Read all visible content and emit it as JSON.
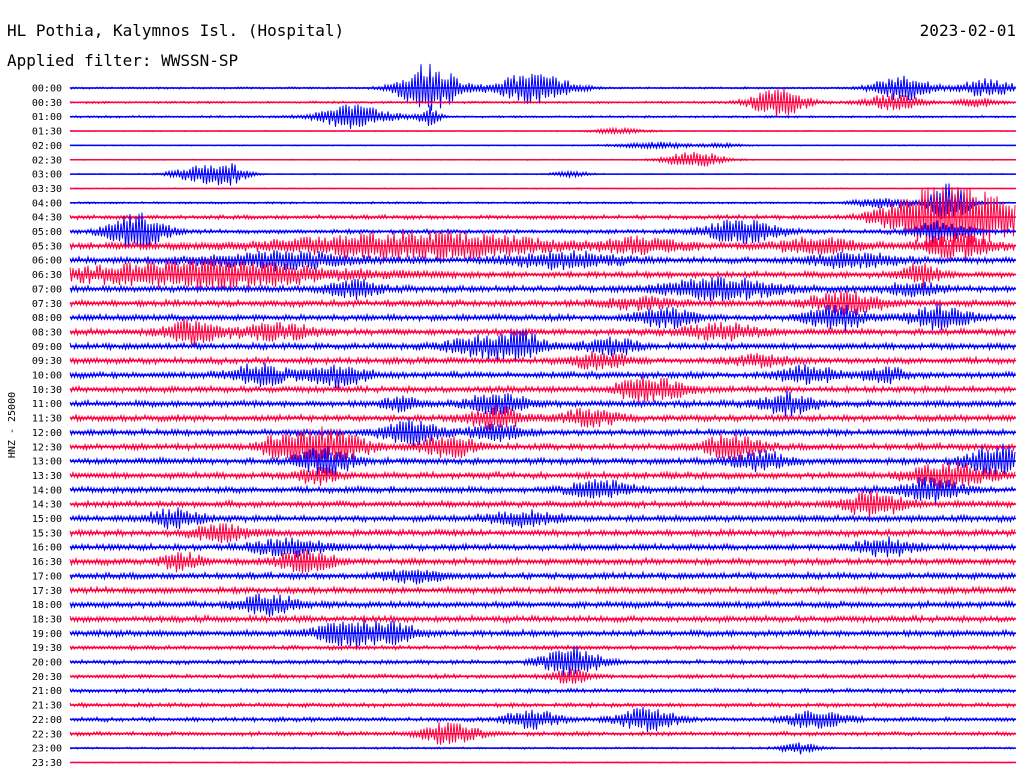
{
  "header": {
    "station": "HL Pothia, Kalymnos Isl. (Hospital)",
    "date": "2023-02-01",
    "filter": "Applied filter: WWSSN-SP"
  },
  "chart_data": {
    "type": "line",
    "title": "HL Pothia, Kalymnos Isl. (Hospital)",
    "subtitle": "Applied filter: WWSSN-SP",
    "date": "2023-02-01",
    "ylabel": "HNZ - 25000",
    "xlabel": "",
    "grid": false,
    "colors": {
      "even": "#0000ff",
      "odd": "#ff0040",
      "text": "#000000"
    },
    "rows": [
      {
        "label": "00:00",
        "level": "low",
        "events": [
          {
            "at": 0.38,
            "amp": 1.0,
            "width": 0.03
          },
          {
            "at": 0.49,
            "amp": 0.6,
            "width": 0.04
          },
          {
            "at": 0.88,
            "amp": 0.5,
            "width": 0.03
          },
          {
            "at": 0.97,
            "amp": 0.35,
            "width": 0.03
          }
        ]
      },
      {
        "label": "00:30",
        "level": "low",
        "events": [
          {
            "at": 0.75,
            "amp": 0.55,
            "width": 0.03
          },
          {
            "at": 0.87,
            "amp": 0.3,
            "width": 0.03
          },
          {
            "at": 0.96,
            "amp": 0.2,
            "width": 0.02
          }
        ]
      },
      {
        "label": "01:00",
        "level": "low",
        "events": [
          {
            "at": 0.3,
            "amp": 0.45,
            "width": 0.04
          },
          {
            "at": 0.38,
            "amp": 0.4,
            "width": 0.01
          }
        ]
      },
      {
        "label": "01:30",
        "level": "quiet",
        "events": [
          {
            "at": 0.58,
            "amp": 0.1,
            "width": 0.03
          }
        ]
      },
      {
        "label": "02:00",
        "level": "quiet",
        "events": [
          {
            "at": 0.62,
            "amp": 0.12,
            "width": 0.04
          },
          {
            "at": 0.69,
            "amp": 0.08,
            "width": 0.02
          }
        ]
      },
      {
        "label": "02:30",
        "level": "quiet",
        "events": [
          {
            "at": 0.66,
            "amp": 0.35,
            "width": 0.03
          }
        ]
      },
      {
        "label": "03:00",
        "level": "quiet",
        "events": [
          {
            "at": 0.14,
            "amp": 0.35,
            "width": 0.03
          },
          {
            "at": 0.17,
            "amp": 0.3,
            "width": 0.02
          },
          {
            "at": 0.53,
            "amp": 0.1,
            "width": 0.02
          }
        ]
      },
      {
        "label": "03:30",
        "level": "quiet",
        "events": []
      },
      {
        "label": "04:00",
        "level": "low",
        "events": [
          {
            "at": 0.93,
            "amp": 0.8,
            "width": 0.02
          },
          {
            "at": 0.86,
            "amp": 0.2,
            "width": 0.03
          }
        ]
      },
      {
        "label": "04:30",
        "level": "mid",
        "events": [
          {
            "at": 0.92,
            "amp": 1.2,
            "width": 0.04
          },
          {
            "at": 0.98,
            "amp": 0.8,
            "width": 0.04
          },
          {
            "at": 0.87,
            "amp": 0.3,
            "width": 0.03
          }
        ]
      },
      {
        "label": "05:00",
        "level": "mid",
        "events": [
          {
            "at": 0.07,
            "amp": 0.7,
            "width": 0.03
          },
          {
            "at": 0.71,
            "amp": 0.45,
            "width": 0.04
          },
          {
            "at": 0.92,
            "amp": 0.35,
            "width": 0.03
          }
        ]
      },
      {
        "label": "05:30",
        "level": "high",
        "events": [
          {
            "at": 0.37,
            "amp": 0.5,
            "width": 0.14
          },
          {
            "at": 0.61,
            "amp": 0.3,
            "width": 0.04
          },
          {
            "at": 0.79,
            "amp": 0.3,
            "width": 0.04
          },
          {
            "at": 0.94,
            "amp": 0.45,
            "width": 0.04
          }
        ]
      },
      {
        "label": "06:00",
        "level": "high",
        "events": [
          {
            "at": 0.22,
            "amp": 0.3,
            "width": 0.08
          },
          {
            "at": 0.52,
            "amp": 0.3,
            "width": 0.06
          },
          {
            "at": 0.83,
            "amp": 0.25,
            "width": 0.05
          }
        ]
      },
      {
        "label": "06:30",
        "level": "high",
        "events": [
          {
            "at": 0.14,
            "amp": 0.5,
            "width": 0.14
          },
          {
            "at": 0.9,
            "amp": 0.4,
            "width": 0.02
          }
        ]
      },
      {
        "label": "07:00",
        "level": "high",
        "events": [
          {
            "at": 0.3,
            "amp": 0.3,
            "width": 0.03
          },
          {
            "at": 0.69,
            "amp": 0.4,
            "width": 0.06
          },
          {
            "at": 0.89,
            "amp": 0.25,
            "width": 0.03
          }
        ]
      },
      {
        "label": "07:30",
        "level": "high",
        "events": [
          {
            "at": 0.82,
            "amp": 0.4,
            "width": 0.04
          },
          {
            "at": 0.6,
            "amp": 0.2,
            "width": 0.04
          }
        ]
      },
      {
        "label": "08:00",
        "level": "high",
        "events": [
          {
            "at": 0.63,
            "amp": 0.35,
            "width": 0.03
          },
          {
            "at": 0.81,
            "amp": 0.45,
            "width": 0.03
          },
          {
            "at": 0.92,
            "amp": 0.45,
            "width": 0.03
          }
        ]
      },
      {
        "label": "08:30",
        "level": "high",
        "events": [
          {
            "at": 0.13,
            "amp": 0.45,
            "width": 0.03
          },
          {
            "at": 0.22,
            "amp": 0.3,
            "width": 0.04
          },
          {
            "at": 0.69,
            "amp": 0.3,
            "width": 0.04
          }
        ]
      },
      {
        "label": "09:00",
        "level": "high",
        "events": [
          {
            "at": 0.44,
            "amp": 0.4,
            "width": 0.04
          },
          {
            "at": 0.48,
            "amp": 0.45,
            "width": 0.02
          },
          {
            "at": 0.57,
            "amp": 0.3,
            "width": 0.03
          }
        ]
      },
      {
        "label": "09:30",
        "level": "high",
        "events": [
          {
            "at": 0.56,
            "amp": 0.3,
            "width": 0.03
          },
          {
            "at": 0.73,
            "amp": 0.2,
            "width": 0.03
          }
        ]
      },
      {
        "label": "10:00",
        "level": "high",
        "events": [
          {
            "at": 0.2,
            "amp": 0.4,
            "width": 0.03
          },
          {
            "at": 0.28,
            "amp": 0.45,
            "width": 0.03
          },
          {
            "at": 0.78,
            "amp": 0.35,
            "width": 0.03
          },
          {
            "at": 0.86,
            "amp": 0.3,
            "width": 0.02
          }
        ]
      },
      {
        "label": "10:30",
        "level": "high",
        "events": [
          {
            "at": 0.62,
            "amp": 0.4,
            "width": 0.03
          },
          {
            "at": 0.59,
            "amp": 0.2,
            "width": 0.02
          }
        ]
      },
      {
        "label": "11:00",
        "level": "high",
        "events": [
          {
            "at": 0.45,
            "amp": 0.4,
            "width": 0.03
          },
          {
            "at": 0.76,
            "amp": 0.4,
            "width": 0.03
          },
          {
            "at": 0.35,
            "amp": 0.25,
            "width": 0.02
          }
        ]
      },
      {
        "label": "11:30",
        "level": "high",
        "events": [
          {
            "at": 0.45,
            "amp": 0.4,
            "width": 0.03
          },
          {
            "at": 0.55,
            "amp": 0.3,
            "width": 0.03
          }
        ]
      },
      {
        "label": "12:00",
        "level": "high",
        "events": [
          {
            "at": 0.36,
            "amp": 0.45,
            "width": 0.03
          },
          {
            "at": 0.45,
            "amp": 0.3,
            "width": 0.03
          }
        ]
      },
      {
        "label": "12:30",
        "level": "high",
        "events": [
          {
            "at": 0.22,
            "amp": 0.35,
            "width": 0.02
          },
          {
            "at": 0.27,
            "amp": 0.7,
            "width": 0.04
          },
          {
            "at": 0.4,
            "amp": 0.4,
            "width": 0.03
          },
          {
            "at": 0.7,
            "amp": 0.5,
            "width": 0.03
          }
        ]
      },
      {
        "label": "13:00",
        "level": "high",
        "events": [
          {
            "at": 0.27,
            "amp": 0.5,
            "width": 0.03
          },
          {
            "at": 0.73,
            "amp": 0.35,
            "width": 0.03
          },
          {
            "at": 0.98,
            "amp": 0.6,
            "width": 0.03
          }
        ]
      },
      {
        "label": "13:30",
        "level": "high",
        "events": [
          {
            "at": 0.26,
            "amp": 0.3,
            "width": 0.02
          },
          {
            "at": 0.93,
            "amp": 0.5,
            "width": 0.04
          }
        ]
      },
      {
        "label": "14:00",
        "level": "high",
        "events": [
          {
            "at": 0.56,
            "amp": 0.4,
            "width": 0.03
          },
          {
            "at": 0.91,
            "amp": 0.45,
            "width": 0.03
          }
        ]
      },
      {
        "label": "14:30",
        "level": "high",
        "events": [
          {
            "at": 0.85,
            "amp": 0.5,
            "width": 0.03
          }
        ]
      },
      {
        "label": "15:00",
        "level": "high",
        "events": [
          {
            "at": 0.11,
            "amp": 0.35,
            "width": 0.03
          },
          {
            "at": 0.48,
            "amp": 0.25,
            "width": 0.04
          }
        ]
      },
      {
        "label": "15:30",
        "level": "high",
        "events": [
          {
            "at": 0.16,
            "amp": 0.3,
            "width": 0.03
          }
        ]
      },
      {
        "label": "16:00",
        "level": "high",
        "events": [
          {
            "at": 0.23,
            "amp": 0.3,
            "width": 0.04
          },
          {
            "at": 0.86,
            "amp": 0.35,
            "width": 0.03
          }
        ]
      },
      {
        "label": "16:30",
        "level": "high",
        "events": [
          {
            "at": 0.12,
            "amp": 0.35,
            "width": 0.02
          },
          {
            "at": 0.25,
            "amp": 0.4,
            "width": 0.03
          }
        ]
      },
      {
        "label": "17:00",
        "level": "high",
        "events": [
          {
            "at": 0.36,
            "amp": 0.25,
            "width": 0.03
          }
        ]
      },
      {
        "label": "17:30",
        "level": "high",
        "events": []
      },
      {
        "label": "18:00",
        "level": "high",
        "events": [
          {
            "at": 0.21,
            "amp": 0.4,
            "width": 0.03
          }
        ]
      },
      {
        "label": "18:30",
        "level": "high",
        "events": []
      },
      {
        "label": "19:00",
        "level": "high",
        "events": [
          {
            "at": 0.29,
            "amp": 0.45,
            "width": 0.03
          },
          {
            "at": 0.34,
            "amp": 0.4,
            "width": 0.03
          }
        ]
      },
      {
        "label": "19:30",
        "level": "mid",
        "events": []
      },
      {
        "label": "20:00",
        "level": "mid",
        "events": [
          {
            "at": 0.53,
            "amp": 0.55,
            "width": 0.03
          }
        ]
      },
      {
        "label": "20:30",
        "level": "mid",
        "events": [
          {
            "at": 0.53,
            "amp": 0.25,
            "width": 0.02
          }
        ]
      },
      {
        "label": "21:00",
        "level": "mid",
        "events": []
      },
      {
        "label": "21:30",
        "level": "mid",
        "events": []
      },
      {
        "label": "22:00",
        "level": "mid",
        "events": [
          {
            "at": 0.49,
            "amp": 0.35,
            "width": 0.03
          },
          {
            "at": 0.61,
            "amp": 0.45,
            "width": 0.03
          },
          {
            "at": 0.79,
            "amp": 0.4,
            "width": 0.03
          }
        ]
      },
      {
        "label": "22:30",
        "level": "mid",
        "events": [
          {
            "at": 0.4,
            "amp": 0.4,
            "width": 0.03
          }
        ]
      },
      {
        "label": "23:00",
        "level": "low",
        "events": [
          {
            "at": 0.77,
            "amp": 0.2,
            "width": 0.02
          }
        ]
      },
      {
        "label": "23:30",
        "level": "quiet",
        "events": []
      }
    ]
  }
}
